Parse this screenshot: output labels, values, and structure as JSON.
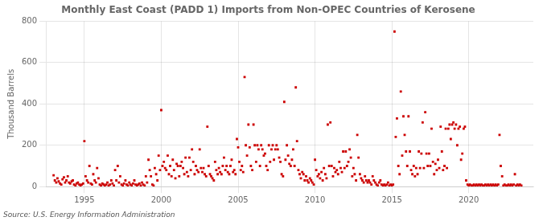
{
  "chart_data": {
    "type": "scatter",
    "title": "Monthly East Coast (PADD 1) Imports from Non-OPEC Countries of Kerosene",
    "ylabel": "Thousand Barrels",
    "annotations": [
      "Source: U.S. Energy Information Administration"
    ],
    "color": "#CC0000",
    "marker": "square",
    "grid": true,
    "xlim": [
      1992.5,
      2024.2
    ],
    "xticks": [
      1995,
      2000,
      2005,
      2010,
      2015,
      2020
    ],
    "ylim": [
      0,
      800
    ],
    "yticks": [
      0,
      200,
      400,
      600,
      800
    ],
    "x": [
      1993.0,
      1993.08,
      1993.17,
      1993.25,
      1993.33,
      1993.42,
      1993.5,
      1993.58,
      1993.67,
      1993.75,
      1993.83,
      1993.92,
      1994.0,
      1994.08,
      1994.17,
      1994.25,
      1994.33,
      1994.42,
      1994.5,
      1994.58,
      1994.67,
      1994.75,
      1994.83,
      1994.92,
      1995.0,
      1995.08,
      1995.17,
      1995.25,
      1995.33,
      1995.42,
      1995.5,
      1995.58,
      1995.67,
      1995.75,
      1995.83,
      1995.92,
      1996.0,
      1996.08,
      1996.17,
      1996.25,
      1996.33,
      1996.42,
      1996.5,
      1996.58,
      1996.67,
      1996.75,
      1996.83,
      1996.92,
      1997.0,
      1997.08,
      1997.17,
      1997.25,
      1997.33,
      1997.42,
      1997.5,
      1997.58,
      1997.67,
      1997.75,
      1997.83,
      1997.92,
      1998.0,
      1998.08,
      1998.17,
      1998.25,
      1998.33,
      1998.42,
      1998.5,
      1998.58,
      1998.67,
      1998.75,
      1998.83,
      1998.92,
      1999.0,
      1999.08,
      1999.17,
      1999.25,
      1999.33,
      1999.42,
      1999.5,
      1999.58,
      1999.67,
      1999.75,
      1999.83,
      1999.92,
      2000.0,
      2000.08,
      2000.17,
      2000.25,
      2000.33,
      2000.42,
      2000.5,
      2000.58,
      2000.67,
      2000.75,
      2000.83,
      2000.92,
      2001.0,
      2001.08,
      2001.17,
      2001.25,
      2001.33,
      2001.42,
      2001.5,
      2001.58,
      2001.67,
      2001.75,
      2001.83,
      2001.92,
      2002.0,
      2002.08,
      2002.17,
      2002.25,
      2002.33,
      2002.42,
      2002.5,
      2002.58,
      2002.67,
      2002.75,
      2002.83,
      2002.92,
      2003.0,
      2003.08,
      2003.17,
      2003.25,
      2003.33,
      2003.42,
      2003.5,
      2003.58,
      2003.67,
      2003.75,
      2003.83,
      2003.92,
      2004.0,
      2004.08,
      2004.17,
      2004.25,
      2004.33,
      2004.42,
      2004.5,
      2004.58,
      2004.67,
      2004.75,
      2004.83,
      2004.92,
      2005.0,
      2005.08,
      2005.17,
      2005.25,
      2005.33,
      2005.42,
      2005.5,
      2005.58,
      2005.67,
      2005.75,
      2005.83,
      2005.92,
      2006.0,
      2006.08,
      2006.17,
      2006.25,
      2006.33,
      2006.42,
      2006.5,
      2006.58,
      2006.67,
      2006.75,
      2006.83,
      2006.92,
      2007.0,
      2007.08,
      2007.17,
      2007.25,
      2007.33,
      2007.42,
      2007.5,
      2007.58,
      2007.67,
      2007.75,
      2007.83,
      2007.92,
      2008.0,
      2008.08,
      2008.17,
      2008.25,
      2008.33,
      2008.42,
      2008.5,
      2008.58,
      2008.67,
      2008.75,
      2008.83,
      2008.92,
      2009.0,
      2009.08,
      2009.17,
      2009.25,
      2009.33,
      2009.42,
      2009.5,
      2009.58,
      2009.67,
      2009.75,
      2009.83,
      2009.92,
      2010.0,
      2010.08,
      2010.17,
      2010.25,
      2010.33,
      2010.42,
      2010.5,
      2010.58,
      2010.67,
      2010.75,
      2010.83,
      2010.92,
      2011.0,
      2011.08,
      2011.17,
      2011.25,
      2011.33,
      2011.42,
      2011.5,
      2011.58,
      2011.67,
      2011.75,
      2011.83,
      2011.92,
      2012.0,
      2012.08,
      2012.17,
      2012.25,
      2012.33,
      2012.42,
      2012.5,
      2012.58,
      2012.67,
      2012.75,
      2012.83,
      2012.92,
      2013.0,
      2013.08,
      2013.17,
      2013.25,
      2013.33,
      2013.42,
      2013.5,
      2013.58,
      2013.67,
      2013.75,
      2013.83,
      2013.92,
      2014.0,
      2014.08,
      2014.17,
      2014.25,
      2014.33,
      2014.42,
      2014.5,
      2014.58,
      2014.67,
      2014.75,
      2014.83,
      2014.92,
      2015.0,
      2015.08,
      2015.17,
      2015.25,
      2015.33,
      2015.42,
      2015.5,
      2015.58,
      2015.67,
      2015.75,
      2015.83,
      2015.92,
      2016.0,
      2016.08,
      2016.17,
      2016.25,
      2016.33,
      2016.42,
      2016.5,
      2016.58,
      2016.67,
      2016.75,
      2016.83,
      2016.92,
      2017.0,
      2017.08,
      2017.17,
      2017.25,
      2017.33,
      2017.42,
      2017.5,
      2017.58,
      2017.67,
      2017.75,
      2017.83,
      2017.92,
      2018.0,
      2018.08,
      2018.17,
      2018.25,
      2018.33,
      2018.42,
      2018.5,
      2018.58,
      2018.67,
      2018.75,
      2018.83,
      2018.92,
      2019.0,
      2019.08,
      2019.17,
      2019.25,
      2019.33,
      2019.42,
      2019.5,
      2019.58,
      2019.67,
      2019.75,
      2019.83,
      2019.92,
      2020.0,
      2020.08,
      2020.17,
      2020.25,
      2020.33,
      2020.42,
      2020.5,
      2020.58,
      2020.67,
      2020.75,
      2020.83,
      2020.92,
      2021.0,
      2021.08,
      2021.17,
      2021.25,
      2021.33,
      2021.42,
      2021.5,
      2021.58,
      2021.67,
      2021.75,
      2021.83,
      2021.92,
      2022.0,
      2022.08,
      2022.17,
      2022.25,
      2022.33,
      2022.42,
      2022.5,
      2022.58,
      2022.67,
      2022.75,
      2022.83,
      2022.92,
      2023.0,
      2023.08,
      2023.17,
      2023.25,
      2023.33,
      2023.42
    ],
    "values": [
      55,
      30,
      20,
      40,
      25,
      15,
      10,
      35,
      45,
      20,
      30,
      50,
      20,
      15,
      25,
      30,
      10,
      5,
      15,
      20,
      10,
      5,
      10,
      15,
      220,
      50,
      30,
      20,
      100,
      15,
      10,
      60,
      30,
      20,
      90,
      40,
      10,
      5,
      15,
      10,
      5,
      10,
      20,
      5,
      10,
      30,
      15,
      5,
      80,
      30,
      100,
      20,
      50,
      10,
      5,
      15,
      30,
      10,
      5,
      20,
      10,
      5,
      15,
      30,
      10,
      5,
      10,
      15,
      5,
      20,
      10,
      5,
      50,
      20,
      130,
      80,
      50,
      10,
      5,
      90,
      60,
      30,
      150,
      80,
      370,
      100,
      120,
      90,
      80,
      150,
      60,
      100,
      50,
      130,
      80,
      40,
      110,
      100,
      50,
      100,
      120,
      90,
      60,
      140,
      70,
      50,
      140,
      80,
      180,
      120,
      60,
      100,
      80,
      70,
      180,
      90,
      70,
      90,
      60,
      50,
      290,
      100,
      60,
      50,
      40,
      30,
      120,
      80,
      60,
      90,
      70,
      60,
      100,
      140,
      80,
      100,
      70,
      60,
      100,
      130,
      70,
      80,
      60,
      230,
      190,
      120,
      80,
      100,
      70,
      530,
      200,
      150,
      300,
      190,
      100,
      80,
      300,
      200,
      120,
      200,
      180,
      100,
      200,
      180,
      150,
      160,
      100,
      80,
      200,
      120,
      180,
      200,
      130,
      180,
      200,
      180,
      140,
      120,
      60,
      50,
      410,
      130,
      200,
      150,
      110,
      100,
      130,
      180,
      100,
      480,
      220,
      80,
      60,
      40,
      70,
      60,
      30,
      50,
      30,
      20,
      40,
      30,
      20,
      10,
      130,
      80,
      50,
      60,
      40,
      70,
      30,
      90,
      60,
      40,
      300,
      100,
      310,
      100,
      50,
      90,
      70,
      80,
      60,
      120,
      90,
      70,
      170,
      90,
      170,
      100,
      120,
      180,
      140,
      50,
      90,
      60,
      30,
      250,
      140,
      60,
      40,
      30,
      20,
      50,
      30,
      20,
      30,
      20,
      10,
      50,
      30,
      20,
      10,
      5,
      20,
      30,
      10,
      5,
      10,
      5,
      10,
      20,
      5,
      10,
      5,
      10,
      750,
      240,
      330,
      100,
      60,
      460,
      150,
      340,
      250,
      170,
      100,
      340,
      170,
      80,
      60,
      100,
      50,
      90,
      60,
      170,
      90,
      160,
      310,
      90,
      360,
      160,
      100,
      160,
      100,
      280,
      120,
      60,
      110,
      80,
      130,
      90,
      290,
      170,
      80,
      100,
      280,
      90,
      280,
      300,
      230,
      300,
      310,
      280,
      300,
      200,
      280,
      290,
      130,
      160,
      280,
      290,
      30,
      10,
      5,
      10,
      5,
      5,
      10,
      5,
      10,
      5,
      10,
      5,
      10,
      5,
      5,
      10,
      5,
      10,
      5,
      10,
      5,
      10,
      5,
      10,
      5,
      10,
      250,
      100,
      50,
      5,
      10,
      5,
      5,
      10,
      5,
      10,
      5,
      10,
      60,
      5,
      10,
      5,
      10,
      5
    ]
  }
}
